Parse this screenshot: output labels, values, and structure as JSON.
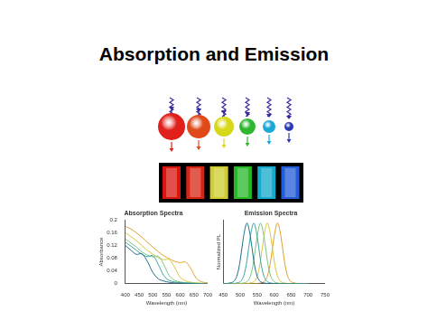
{
  "title": "Absorption and Emission",
  "chart_data": [
    {
      "type": "line",
      "title": "Absorption Spectra",
      "x_label": "Wavelength (nm)",
      "y_label": "Absorbance",
      "x": [
        400,
        420,
        440,
        460,
        480,
        500,
        520,
        540,
        560,
        580,
        600,
        620,
        640,
        660,
        680,
        700
      ],
      "series": [
        {
          "color": "#1f6f8b",
          "values": [
            0.12,
            0.105,
            0.092,
            0.094,
            0.07,
            0.035,
            0.015,
            0.008,
            0.004,
            0.002,
            0.001,
            0,
            0,
            0,
            0,
            0
          ]
        },
        {
          "color": "#3aa6a0",
          "values": [
            0.13,
            0.118,
            0.105,
            0.092,
            0.085,
            0.088,
            0.06,
            0.025,
            0.01,
            0.005,
            0.003,
            0.002,
            0.001,
            0,
            0,
            0
          ]
        },
        {
          "color": "#7cc47f",
          "values": [
            0.14,
            0.128,
            0.115,
            0.1,
            0.09,
            0.084,
            0.086,
            0.06,
            0.025,
            0.01,
            0.005,
            0.003,
            0.002,
            0.001,
            0,
            0
          ]
        },
        {
          "color": "#d9c83a",
          "values": [
            0.16,
            0.148,
            0.135,
            0.12,
            0.105,
            0.092,
            0.082,
            0.075,
            0.076,
            0.05,
            0.02,
            0.008,
            0.004,
            0.002,
            0.001,
            0
          ]
        },
        {
          "color": "#e0a030",
          "values": [
            0.18,
            0.172,
            0.16,
            0.146,
            0.13,
            0.115,
            0.1,
            0.088,
            0.078,
            0.07,
            0.066,
            0.068,
            0.045,
            0.015,
            0.005,
            0.002
          ]
        }
      ],
      "xlim": [
        400,
        700
      ],
      "xticks": [
        400,
        450,
        500,
        550,
        600,
        650,
        700
      ],
      "ylim": [
        0,
        0.2
      ],
      "yticks": [
        0,
        0.04,
        0.08,
        0.12,
        0.16,
        0.2
      ],
      "grid": false
    },
    {
      "type": "line",
      "title": "Emission Spectra",
      "x_label": "Wavelength (nm)",
      "y_label": "Normalized PL",
      "x": [
        450,
        460,
        470,
        480,
        490,
        500,
        510,
        520,
        530,
        540,
        550,
        560,
        570,
        580,
        590,
        600,
        610,
        620,
        630,
        640,
        650,
        660,
        670,
        680,
        690,
        700
      ],
      "series": [
        {
          "color": "#1f6f8b",
          "values": [
            0,
            0,
            0.01,
            0.03,
            0.12,
            0.38,
            0.78,
            1,
            0.78,
            0.38,
            0.12,
            0.03,
            0.01,
            0,
            0,
            0,
            0,
            0,
            0,
            0,
            0,
            0,
            0,
            0,
            0,
            0
          ]
        },
        {
          "color": "#3aa6a0",
          "values": [
            0,
            0,
            0,
            0,
            0.01,
            0.03,
            0.12,
            0.38,
            0.78,
            1,
            0.78,
            0.38,
            0.12,
            0.03,
            0.01,
            0,
            0,
            0,
            0,
            0,
            0,
            0,
            0,
            0,
            0,
            0
          ]
        },
        {
          "color": "#7cc47f",
          "values": [
            0,
            0,
            0,
            0,
            0,
            0,
            0.01,
            0.03,
            0.12,
            0.38,
            0.78,
            1,
            0.78,
            0.38,
            0.12,
            0.03,
            0.01,
            0,
            0,
            0,
            0,
            0,
            0,
            0,
            0,
            0
          ]
        },
        {
          "color": "#d9c83a",
          "values": [
            0,
            0,
            0,
            0,
            0,
            0,
            0,
            0,
            0.01,
            0.03,
            0.12,
            0.38,
            0.78,
            1,
            0.78,
            0.38,
            0.12,
            0.03,
            0.01,
            0,
            0,
            0,
            0,
            0,
            0,
            0
          ]
        },
        {
          "color": "#e0a030",
          "values": [
            0,
            0,
            0,
            0,
            0,
            0,
            0,
            0,
            0,
            0,
            0,
            0.01,
            0.03,
            0.12,
            0.38,
            0.78,
            1,
            0.78,
            0.38,
            0.12,
            0.03,
            0.01,
            0,
            0,
            0,
            0
          ]
        }
      ],
      "xlim": [
        450,
        750
      ],
      "xticks": [
        450,
        500,
        550,
        600,
        650,
        700,
        750
      ],
      "ylim": [
        0,
        1.05
      ],
      "grid": false,
      "tick_labels": "x"
    }
  ]
}
